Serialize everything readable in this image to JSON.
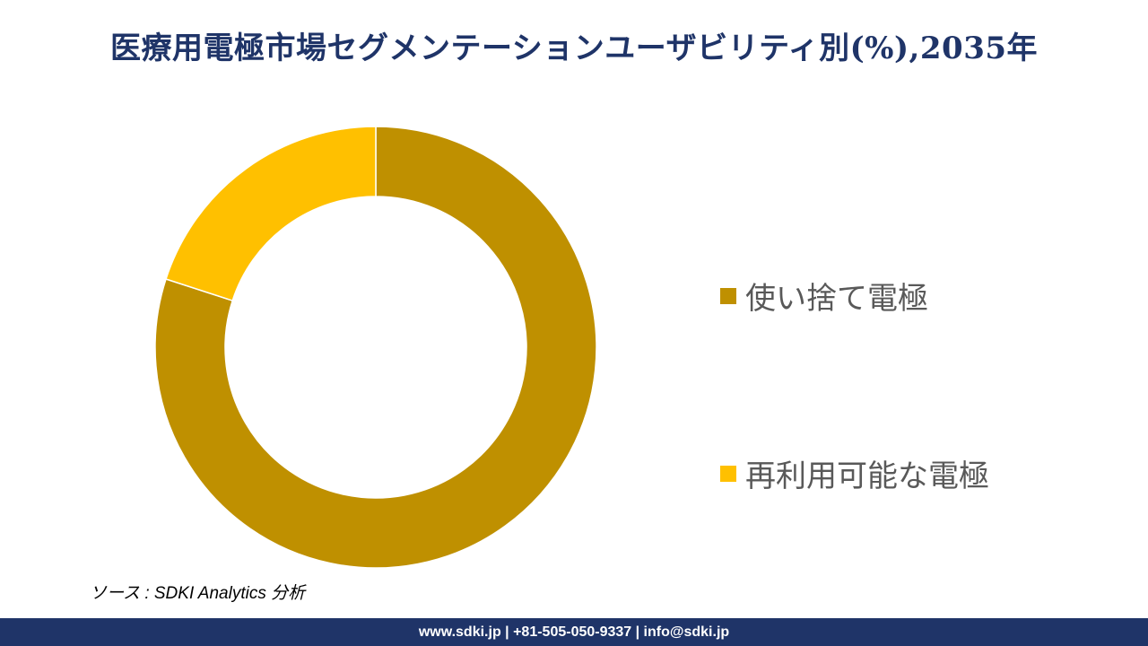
{
  "title": "医療用電極市場セグメンテーションユーザビリティ別(%),2035年",
  "chart_data": {
    "type": "pie",
    "subtype": "donut",
    "categories": [
      "使い捨て電極",
      "再利用可能な電極"
    ],
    "values": [
      80,
      20
    ],
    "colors": [
      "#bf9000",
      "#ffc000"
    ],
    "legend_placement": "right"
  },
  "source": "ソース : SDKI Analytics 分析",
  "footer": "www.sdki.jp | +81-505-050-9337 | info@sdki.jp"
}
